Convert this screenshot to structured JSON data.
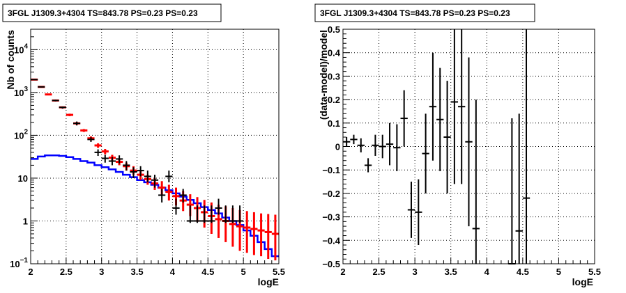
{
  "chart_data": [
    {
      "type": "scatter",
      "title": "3FGL J1309.3+4304 TS=843.78 PS=0.23 PS=0.23",
      "xlabel": "logE",
      "ylabel": "Nb of counts",
      "xlim": [
        2,
        5.5
      ],
      "ylim": [
        0.1,
        30000
      ],
      "y_scale": "log",
      "grid": true,
      "x_ticks": [
        "2",
        "2.5",
        "3",
        "3.5",
        "4",
        "4.5",
        "5",
        "5.5"
      ],
      "y_ticks": [
        {
          "value": 0.1,
          "base": "10",
          "exp": "−1"
        },
        {
          "value": 1,
          "base": "1",
          "exp": ""
        },
        {
          "value": 10,
          "base": "10",
          "exp": ""
        },
        {
          "value": 100,
          "base": "10",
          "exp": "2"
        },
        {
          "value": 1000,
          "base": "10",
          "exp": "3"
        },
        {
          "value": 10000,
          "base": "10",
          "exp": "4"
        }
      ],
      "series": [
        {
          "color": "#000000",
          "x": [
            2.05,
            2.15,
            2.35,
            2.45,
            2.65,
            2.85,
            2.95,
            3.05,
            3.15,
            3.25,
            3.35,
            3.45,
            3.55,
            3.65,
            3.75,
            3.85,
            3.95,
            4.05,
            4.15,
            4.25,
            4.35,
            4.45,
            4.55,
            4.65,
            4.75,
            4.85,
            4.95
          ],
          "y": [
            2000,
            1350,
            650,
            450,
            190,
            80,
            40,
            29,
            25,
            28,
            20,
            14,
            15,
            11,
            9,
            4,
            11,
            2,
            4,
            1,
            1,
            1,
            1,
            2,
            1,
            1,
            1
          ],
          "yerr_lo": [
            1950,
            1310,
            620,
            420,
            170,
            70,
            33,
            23,
            20,
            22,
            15,
            10,
            11,
            8,
            6,
            2.7,
            8,
            1.4,
            2.7,
            0.9,
            0.9,
            0.9,
            0.9,
            1.4,
            0.9,
            0.9,
            0.9
          ],
          "yerr_hi": [
            2050,
            1390,
            680,
            470,
            210,
            90,
            47,
            35,
            31,
            34,
            25,
            18,
            19,
            15,
            12,
            5.6,
            15,
            3.3,
            5.6,
            2.3,
            2.3,
            2.3,
            2.3,
            3.3,
            2.3,
            2.3,
            2.3
          ]
        },
        {
          "color": "#ff0000",
          "x": [
            2.05,
            2.15,
            2.25,
            2.35,
            2.45,
            2.55,
            2.65,
            2.75,
            2.85,
            2.95,
            3.05,
            3.15,
            3.25,
            3.35,
            3.45,
            3.55,
            3.65,
            3.75,
            3.85,
            3.95,
            4.05,
            4.15,
            4.25,
            4.35,
            4.45,
            4.55,
            4.65,
            4.75,
            4.85,
            4.95,
            5.05,
            5.15,
            5.25,
            5.35,
            5.45
          ],
          "y": [
            2000,
            1350,
            900,
            650,
            450,
            300,
            190,
            130,
            85,
            58,
            42,
            30,
            24,
            19,
            15,
            12,
            9.5,
            7.5,
            6,
            4.8,
            3.8,
            3,
            2.4,
            2,
            1.6,
            1.3,
            1.1,
            1,
            0.85,
            0.75,
            0.7,
            0.65,
            0.6,
            0.55,
            0.5
          ],
          "yerr_lo": [
            1950,
            1310,
            870,
            620,
            420,
            280,
            175,
            120,
            76,
            51,
            36,
            25,
            20,
            15,
            12,
            9,
            7,
            5.3,
            4,
            3,
            2.3,
            1.7,
            1.3,
            0.95,
            0.7,
            0.5,
            0.4,
            0.32,
            0.25,
            0.2,
            0.18,
            0.16,
            0.15,
            0.13,
            0.12
          ],
          "yerr_hi": [
            2050,
            1390,
            930,
            680,
            470,
            320,
            205,
            140,
            94,
            65,
            48,
            35,
            29,
            23,
            19,
            15,
            12,
            10,
            8.5,
            7,
            6,
            5,
            4.2,
            3.6,
            3.1,
            2.7,
            2.4,
            2.2,
            2.0,
            1.8,
            1.7,
            1.6,
            1.5,
            1.45,
            1.4
          ],
          "half_width": 0.05
        },
        {
          "color": "#0000ff",
          "type": "step",
          "x": [
            2.0,
            2.1,
            2.2,
            2.3,
            2.4,
            2.5,
            2.6,
            2.7,
            2.8,
            2.9,
            3.0,
            3.1,
            3.2,
            3.3,
            3.4,
            3.5,
            3.6,
            3.7,
            3.8,
            3.9,
            4.0,
            4.1,
            4.2,
            4.3,
            4.4,
            4.5,
            4.6,
            4.7,
            4.8,
            4.9,
            5.0,
            5.1,
            5.2,
            5.3,
            5.4,
            5.5
          ],
          "y": [
            28,
            32,
            34,
            34,
            33,
            31,
            28,
            25,
            23,
            20,
            18,
            16,
            14,
            12,
            10.5,
            9,
            8,
            7,
            6,
            5.2,
            4.4,
            3.7,
            3.1,
            2.6,
            2.1,
            1.8,
            1.5,
            1.2,
            1.0,
            0.8,
            0.6,
            0.45,
            0.32,
            0.22,
            0.15,
            0.12
          ]
        }
      ]
    },
    {
      "type": "scatter",
      "title": "3FGL J1309.3+4304 TS=843.78 PS=0.23 PS=0.23",
      "xlabel": "logE",
      "ylabel": "(data-model)/model",
      "xlim": [
        2,
        5.5
      ],
      "ylim": [
        -0.5,
        0.5
      ],
      "grid": true,
      "x_ticks": [
        "2",
        "2.5",
        "3",
        "3.5",
        "4",
        "4.5",
        "5",
        "5.5"
      ],
      "y_ticks": [
        "−0.5",
        "−0.4",
        "−0.3",
        "−0.2",
        "−0.1",
        "0",
        "0.1",
        "0.2",
        "0.3",
        "0.4",
        "0.5"
      ],
      "y_tick_values": [
        -0.5,
        -0.4,
        -0.3,
        -0.2,
        -0.1,
        0,
        0.1,
        0.2,
        0.3,
        0.4,
        0.5
      ],
      "series": [
        {
          "color": "#000000",
          "x": [
            2.05,
            2.15,
            2.25,
            2.35,
            2.45,
            2.55,
            2.65,
            2.75,
            2.85,
            2.95,
            3.05,
            3.15,
            3.25,
            3.35,
            3.45,
            3.55,
            3.65,
            3.75,
            3.85,
            4.35,
            4.45,
            4.55
          ],
          "y": [
            0.02,
            0.03,
            0.005,
            -0.08,
            0.005,
            0.0,
            0.01,
            -0.005,
            0.12,
            -0.27,
            -0.28,
            -0.03,
            0.17,
            0.115,
            0.04,
            0.19,
            0.17,
            0.02,
            -0.35,
            -0.5,
            -0.36,
            -0.22
          ],
          "yerr": [
            0.02,
            0.02,
            0.03,
            0.03,
            0.045,
            0.05,
            0.09,
            0.1,
            0.12,
            0.12,
            0.14,
            0.17,
            0.23,
            0.22,
            0.24,
            0.35,
            0.33,
            0.36,
            0.55,
            0.62,
            0.5,
            0.75
          ],
          "half_width": 0.05
        }
      ]
    }
  ]
}
